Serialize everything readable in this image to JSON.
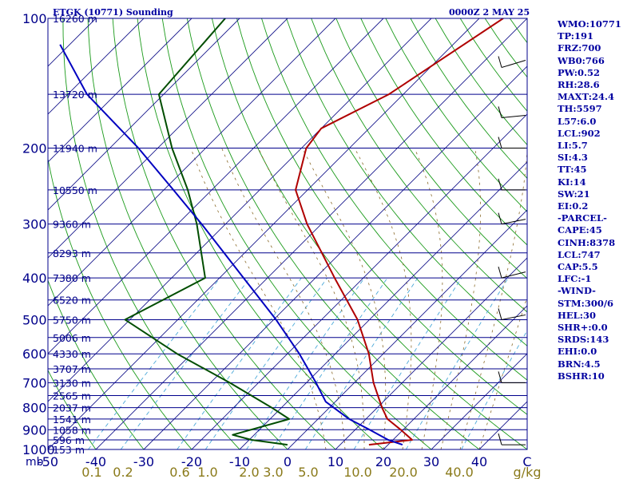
{
  "header": {
    "title": "ETGK (10771) Sounding",
    "time": "0000Z  2 MAY 25"
  },
  "indices": [
    "WMO:10771",
    "TP:191",
    "FRZ:700",
    "WB0:766",
    "PW:0.52",
    "RH:28.6",
    "MAXT:24.4",
    "TH:5597",
    "L57:6.0",
    "LCL:902",
    "LI:5.7",
    "SI:4.3",
    "TT:45",
    "KI:14",
    "SW:21",
    "EI:0.2",
    "-PARCEL-",
    "CAPE:45",
    "CINH:8378",
    "LCL:747",
    "CAP:5.5",
    "LFC:-1",
    "-WIND-",
    "STM:300/6",
    "HEL:30",
    "SHR+:0.0",
    "SRDS:143",
    "EHI:0.0",
    "BRN:4.5",
    "BSHR:10"
  ],
  "colors": {
    "isobar": "#00008b",
    "dry_adiabat": "#1a9a1a",
    "isotherm": "#16168c",
    "temperature": "#b00000",
    "dewpoint": "#004d00",
    "parcel": "#0000c0",
    "mixing_ratio": "#4aa8d8",
    "moist_adiabat": "#8a6a2a",
    "index_text": "#0000a0"
  },
  "chart_data": {
    "type": "line",
    "ylabel": "mb",
    "yscale": "log",
    "ylim": [
      1000,
      100
    ],
    "xlim": [
      -50,
      50
    ],
    "pressure_ticks": [
      100,
      200,
      300,
      400,
      500,
      600,
      700,
      800,
      900,
      1000
    ],
    "temperature_ticks": [
      "-50",
      "-40",
      "-30",
      "-20",
      "-10",
      "0",
      "10",
      "20",
      "30",
      "40",
      "C"
    ],
    "height_labels": [
      {
        "p": 100,
        "label": "16260 m"
      },
      {
        "p": 150,
        "label": "13720 m"
      },
      {
        "p": 200,
        "label": "11940 m"
      },
      {
        "p": 250,
        "label": "10550 m"
      },
      {
        "p": 300,
        "label": "9360 m"
      },
      {
        "p": 350,
        "label": "8293 m"
      },
      {
        "p": 400,
        "label": "7380 m"
      },
      {
        "p": 450,
        "label": "6520 m"
      },
      {
        "p": 500,
        "label": "5750 m"
      },
      {
        "p": 550,
        "label": "5006 m"
      },
      {
        "p": 600,
        "label": "4330 m"
      },
      {
        "p": 650,
        "label": "3707 m"
      },
      {
        "p": 700,
        "label": "3130 m"
      },
      {
        "p": 750,
        "label": "2565 m"
      },
      {
        "p": 800,
        "label": "2037 m"
      },
      {
        "p": 850,
        "label": "1541 m"
      },
      {
        "p": 900,
        "label": "1058 m"
      },
      {
        "p": 950,
        "label": "596 m"
      },
      {
        "p": 1000,
        "label": "153 m"
      }
    ],
    "mixing_ratio_labels": [
      "0.1",
      "0.2",
      "0.6",
      "1.0",
      "2.0",
      "3.0",
      "5.0",
      "10.0",
      "20.0",
      "40.0",
      "g/kg"
    ],
    "series": [
      {
        "key": "temperature",
        "values": [
          {
            "p": 975,
            "t": 16.0
          },
          {
            "p": 950,
            "t": 24.0
          },
          {
            "p": 900,
            "t": 19.5
          },
          {
            "p": 850,
            "t": 14.5
          },
          {
            "p": 800,
            "t": 11.0
          },
          {
            "p": 700,
            "t": 4.0
          },
          {
            "p": 600,
            "t": -3.0
          },
          {
            "p": 500,
            "t": -12.5
          },
          {
            "p": 400,
            "t": -26.0
          },
          {
            "p": 300,
            "t": -43.0
          },
          {
            "p": 250,
            "t": -52.5
          },
          {
            "p": 200,
            "t": -59.0
          },
          {
            "p": 180,
            "t": -60.0
          },
          {
            "p": 150,
            "t": -53.0
          },
          {
            "p": 100,
            "t": -45.0
          }
        ]
      },
      {
        "key": "dewpoint",
        "values": [
          {
            "p": 975,
            "t": -1.0
          },
          {
            "p": 950,
            "t": -9.5
          },
          {
            "p": 925,
            "t": -14.5
          },
          {
            "p": 850,
            "t": -6.0
          },
          {
            "p": 800,
            "t": -12.0
          },
          {
            "p": 700,
            "t": -26.0
          },
          {
            "p": 600,
            "t": -43.0
          },
          {
            "p": 500,
            "t": -61.0
          },
          {
            "p": 400,
            "t": -53.0
          },
          {
            "p": 300,
            "t": -66.0
          },
          {
            "p": 250,
            "t": -75.0
          },
          {
            "p": 200,
            "t": -87.0
          },
          {
            "p": 150,
            "t": -101.0
          },
          {
            "p": 100,
            "t": -103.0
          }
        ]
      },
      {
        "key": "parcel",
        "values": [
          {
            "p": 975,
            "t": 23.0
          },
          {
            "p": 950,
            "t": 19.0
          },
          {
            "p": 900,
            "t": 13.0
          },
          {
            "p": 850,
            "t": 6.5
          },
          {
            "p": 775,
            "t": -2.0
          },
          {
            "p": 700,
            "t": -8.0
          },
          {
            "p": 600,
            "t": -17.5
          },
          {
            "p": 500,
            "t": -29.5
          },
          {
            "p": 400,
            "t": -45.0
          },
          {
            "p": 300,
            "t": -65.0
          },
          {
            "p": 250,
            "t": -78.0
          },
          {
            "p": 200,
            "t": -94.0
          },
          {
            "p": 150,
            "t": -116.0
          },
          {
            "p": 115,
            "t": -132.0
          }
        ]
      }
    ]
  }
}
